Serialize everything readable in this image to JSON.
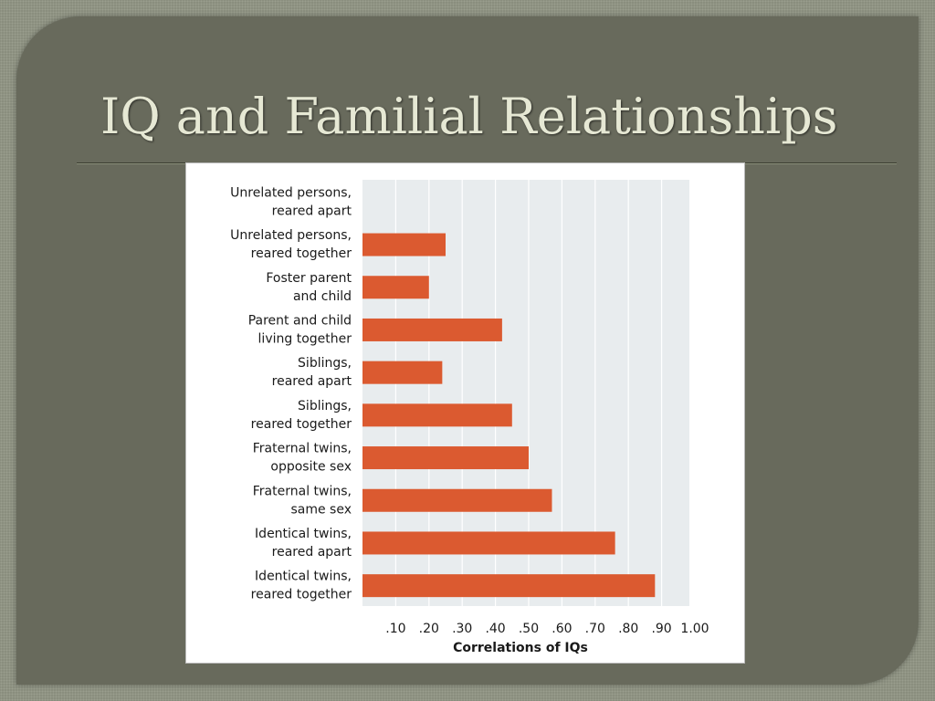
{
  "slide": {
    "title": "IQ and Familial Relationships"
  },
  "colors": {
    "bar": "#db5a30",
    "plot_background": "#e8ecee",
    "gridline": "#ffffff",
    "text": "#1a1a1a"
  },
  "chart_data": {
    "type": "bar",
    "orientation": "horizontal",
    "categories": [
      [
        "Unrelated persons,",
        "reared apart"
      ],
      [
        "Unrelated persons,",
        "reared together"
      ],
      [
        "Foster parent",
        "and child"
      ],
      [
        "Parent and child",
        "living together"
      ],
      [
        "Siblings,",
        "reared apart"
      ],
      [
        "Siblings,",
        "reared together"
      ],
      [
        "Fraternal twins,",
        "opposite sex"
      ],
      [
        "Fraternal twins,",
        "same sex"
      ],
      [
        "Identical twins,",
        "reared apart"
      ],
      [
        "Identical twins,",
        "reared together"
      ]
    ],
    "values": [
      0.0,
      0.25,
      0.2,
      0.42,
      0.24,
      0.45,
      0.5,
      0.57,
      0.76,
      0.88
    ],
    "xlabel": "Correlations of IQs",
    "xticks": [
      ".10",
      ".20",
      ".30",
      ".40",
      ".50",
      ".60",
      ".70",
      ".80",
      ".90",
      "1.00"
    ],
    "tick_values": [
      0.1,
      0.2,
      0.3,
      0.4,
      0.5,
      0.6,
      0.7,
      0.8,
      0.9,
      1.0
    ],
    "xlim": [
      0,
      1.0
    ],
    "grid": true
  }
}
